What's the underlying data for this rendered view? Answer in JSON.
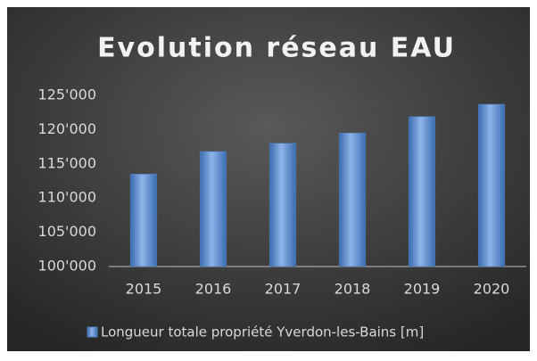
{
  "chart_data": {
    "type": "bar",
    "title": "Evolution réseau EAU",
    "categories": [
      "2015",
      "2016",
      "2017",
      "2018",
      "2019",
      "2020"
    ],
    "series": [
      {
        "name": "Longueur totale propriété Yverdon-les-Bains [m]",
        "color": "#4f81bd",
        "values": [
          113500,
          116800,
          118000,
          119500,
          121900,
          123700
        ]
      }
    ],
    "ylim": [
      100000,
      125000
    ],
    "yticks": [
      {
        "value": 100000,
        "label": "100'000"
      },
      {
        "value": 105000,
        "label": "105'000"
      },
      {
        "value": 110000,
        "label": "110'000"
      },
      {
        "value": 115000,
        "label": "115'000"
      },
      {
        "value": 120000,
        "label": "120'000"
      },
      {
        "value": 125000,
        "label": "125'000"
      }
    ],
    "grid": false,
    "legend": "bottom"
  }
}
